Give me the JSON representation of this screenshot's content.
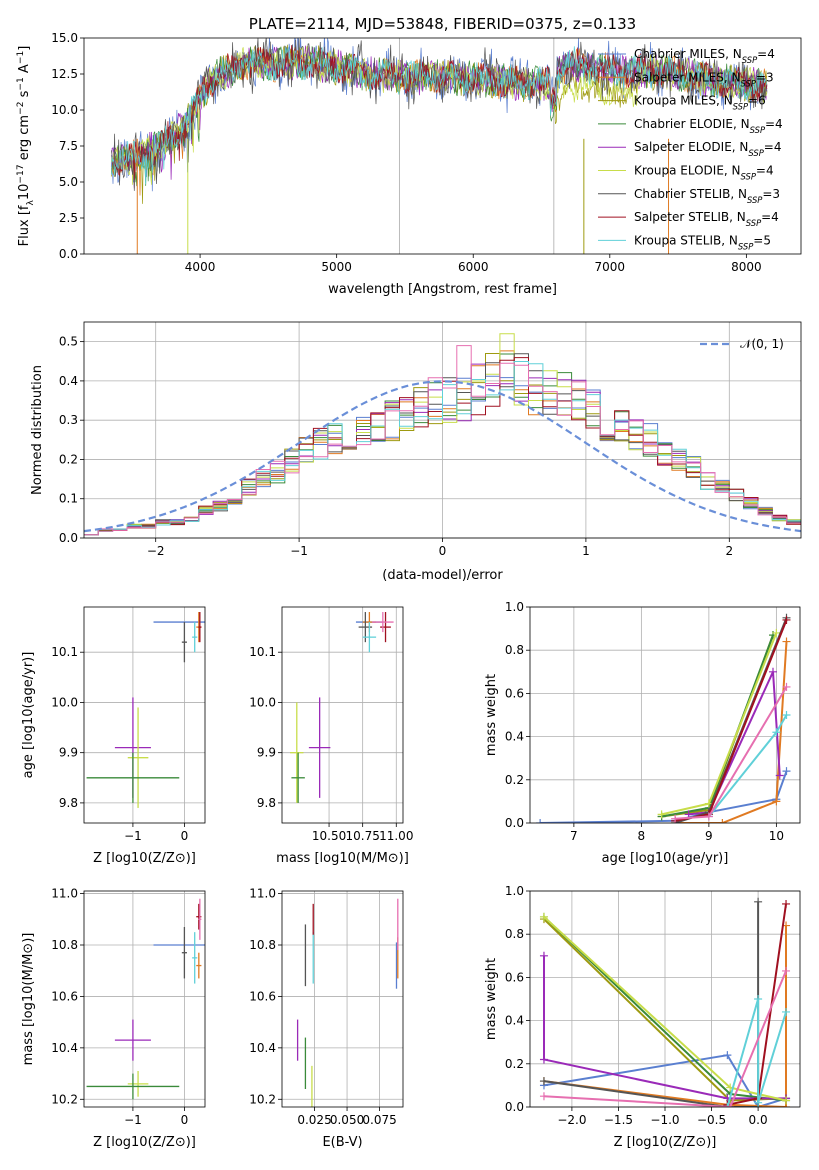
{
  "colors": {
    "Chabrier MILES": "#5a7fd0",
    "Salpeter MILES": "#e07a22",
    "Kroupa MILES": "#9e9a10",
    "Chabrier ELODIE": "#3a8a3a",
    "Salpeter ELODIE": "#9a2ab8",
    "Kroupa ELODIE": "#c8dd4a",
    "Chabrier STELIB": "#555555",
    "Salpeter STELIB": "#a01020",
    "Kroupa STELIB": "#60d0d8",
    "pink": "#e66fb0",
    "normal": "#6a8fd8"
  },
  "chart_data": [
    {
      "id": "spectrum",
      "type": "line",
      "title": "PLATE=2114, MJD=53848, FIBERID=0375, z=0.133",
      "xlabel": "wavelength [Angstrom, rest frame]",
      "ylabel": "Flux [f_λ 10^-17 erg cm^-2 s^-1 A^-1]",
      "xlim": [
        3150,
        8400
      ],
      "ylim": [
        0,
        15
      ],
      "xticks": [
        4000,
        5000,
        6000,
        7000,
        8000
      ],
      "yticks": [
        0.0,
        2.5,
        5.0,
        7.5,
        10.0,
        12.5,
        15.0
      ],
      "grid": false,
      "legend": "top-right",
      "legend_entries": [
        {
          "model": "Chabrier MILES",
          "n_ssp": 4
        },
        {
          "model": "Salpeter MILES",
          "n_ssp": 3
        },
        {
          "model": "Kroupa MILES",
          "n_ssp": 6
        },
        {
          "model": "Chabrier ELODIE",
          "n_ssp": 4
        },
        {
          "model": "Salpeter ELODIE",
          "n_ssp": 4
        },
        {
          "model": "Kroupa ELODIE",
          "n_ssp": 4
        },
        {
          "model": "Chabrier STELIB",
          "n_ssp": 3
        },
        {
          "model": "Salpeter STELIB",
          "n_ssp": 4
        },
        {
          "model": "Kroupa STELIB",
          "n_ssp": 5
        }
      ],
      "continuum": {
        "x": [
          3350,
          3550,
          3700,
          3900,
          4000,
          4100,
          4300,
          4500,
          4800,
          5000,
          5200,
          5500,
          5800,
          6000,
          6200,
          6400,
          6550,
          6700,
          7000,
          7200,
          7500,
          7800,
          8100
        ],
        "y": [
          6.5,
          6.8,
          7.5,
          9.0,
          11.0,
          12.3,
          13.2,
          13.2,
          13.3,
          13.0,
          12.6,
          12.3,
          12.3,
          12.2,
          12.0,
          11.8,
          11.8,
          13.2,
          12.8,
          12.7,
          12.5,
          12.0,
          11.7
        ]
      },
      "vertical_lines": [
        5460,
        6590
      ]
    },
    {
      "id": "residuals",
      "type": "histogram",
      "xlabel": "(data-model)/error",
      "ylabel": "Normed distribution",
      "xlim": [
        -2.5,
        2.5
      ],
      "ylim": [
        0,
        0.55
      ],
      "xticks": [
        -2,
        -1,
        0,
        1,
        2
      ],
      "yticks": [
        0.0,
        0.1,
        0.2,
        0.3,
        0.4,
        0.5
      ],
      "grid": true,
      "legend": "top-right",
      "legend_entries": [
        "𝒩(0, 1)"
      ],
      "bins": [
        -2.5,
        -2.4,
        -2.3,
        -2.2,
        -2.1,
        -2.0,
        -1.9,
        -1.8,
        -1.7,
        -1.6,
        -1.5,
        -1.4,
        -1.3,
        -1.2,
        -1.1,
        -1.0,
        -0.9,
        -0.8,
        -0.7,
        -0.6,
        -0.5,
        -0.4,
        -0.3,
        -0.2,
        -0.1,
        0.0,
        0.1,
        0.2,
        0.3,
        0.4,
        0.5,
        0.6,
        0.7,
        0.8,
        0.9,
        1.0,
        1.1,
        1.2,
        1.3,
        1.4,
        1.5,
        1.6,
        1.7,
        1.8,
        1.9,
        2.0,
        2.1,
        2.2,
        2.3,
        2.4,
        2.5
      ],
      "base": [
        0.01,
        0.02,
        0.02,
        0.03,
        0.03,
        0.04,
        0.04,
        0.05,
        0.07,
        0.08,
        0.1,
        0.13,
        0.15,
        0.17,
        0.2,
        0.22,
        0.24,
        0.25,
        0.27,
        0.28,
        0.29,
        0.3,
        0.32,
        0.33,
        0.35,
        0.35,
        0.36,
        0.38,
        0.4,
        0.41,
        0.4,
        0.38,
        0.37,
        0.36,
        0.35,
        0.33,
        0.3,
        0.28,
        0.27,
        0.25,
        0.22,
        0.2,
        0.18,
        0.15,
        0.13,
        0.11,
        0.09,
        0.07,
        0.05,
        0.04
      ]
    },
    {
      "id": "age-vs-Z",
      "type": "scatter",
      "xlabel": "Z [log10(Z/Z⊙)]",
      "ylabel": "age [log10(age/yr)]",
      "xlim": [
        -1.95,
        0.4
      ],
      "ylim": [
        9.76,
        10.19
      ],
      "xticks": [
        -1,
        0
      ],
      "yticks": [
        9.8,
        9.9,
        10.0,
        10.1
      ],
      "grid": true,
      "points": [
        {
          "model": "Chabrier MILES",
          "x": -0.1,
          "xerr": 0.5,
          "y": 10.16,
          "yerr": 0.0
        },
        {
          "model": "Salpeter MILES",
          "x": 0.28,
          "xerr": 0.05,
          "y": 10.15,
          "yerr": 0.03
        },
        {
          "model": "Chabrier STELIB",
          "x": 0.0,
          "xerr": 0.05,
          "y": 10.12,
          "yerr": 0.04
        },
        {
          "model": "Salpeter STELIB",
          "x": 0.3,
          "xerr": 0.03,
          "y": 10.15,
          "yerr": 0.03
        },
        {
          "model": "Kroupa STELIB",
          "x": 0.2,
          "xerr": 0.05,
          "y": 10.13,
          "yerr": 0.03
        },
        {
          "model": "Salpeter ELODIE",
          "x": -1.0,
          "xerr": 0.35,
          "y": 9.91,
          "yerr": 0.1
        },
        {
          "model": "Kroupa ELODIE",
          "x": -0.9,
          "xerr": 0.2,
          "y": 9.89,
          "yerr": 0.1
        },
        {
          "model": "Chabrier ELODIE",
          "x": -1.0,
          "xerr": 0.9,
          "y": 9.85,
          "yerr": 0.05
        }
      ]
    },
    {
      "id": "age-vs-mass",
      "type": "scatter",
      "xlabel": "mass [log10(M/M⊙)]",
      "ylabel": "",
      "xlim": [
        10.15,
        11.05
      ],
      "ylim": [
        9.76,
        10.19
      ],
      "xticks": [
        10.5,
        10.75,
        11.0
      ],
      "ytick_labels_at": [
        9.8,
        9.9,
        10.0,
        10.1
      ],
      "grid": true,
      "points": [
        {
          "model": "Chabrier MILES",
          "x": 10.8,
          "xerr": 0.1,
          "y": 10.16,
          "yerr": 0.0
        },
        {
          "model": "Salpeter MILES",
          "x": 10.8,
          "xerr": 0.05,
          "y": 10.16,
          "yerr": 0.02
        },
        {
          "model": "Chabrier STELIB",
          "x": 10.77,
          "xerr": 0.05,
          "y": 10.15,
          "yerr": 0.03
        },
        {
          "model": "Salpeter STELIB",
          "x": 10.92,
          "xerr": 0.04,
          "y": 10.15,
          "yerr": 0.03
        },
        {
          "model": "Kroupa STELIB",
          "x": 10.8,
          "xerr": 0.05,
          "y": 10.13,
          "yerr": 0.03
        },
        {
          "model": "pink",
          "x": 10.9,
          "xerr": 0.08,
          "y": 10.16,
          "yerr": 0.02
        },
        {
          "model": "Salpeter ELODIE",
          "x": 10.43,
          "xerr": 0.08,
          "y": 9.91,
          "yerr": 0.1
        },
        {
          "model": "Kroupa ELODIE",
          "x": 10.26,
          "xerr": 0.05,
          "y": 9.9,
          "yerr": 0.1
        },
        {
          "model": "Chabrier ELODIE",
          "x": 10.27,
          "xerr": 0.05,
          "y": 9.85,
          "yerr": 0.05
        }
      ]
    },
    {
      "id": "weight-vs-age",
      "type": "line",
      "xlabel": "age [log10(age/yr)]",
      "ylabel": "mass weight",
      "xlim": [
        6.35,
        10.35
      ],
      "ylim": [
        0,
        1.0
      ],
      "xticks": [
        7,
        8,
        9,
        10
      ],
      "yticks": [
        0.0,
        0.2,
        0.4,
        0.6,
        0.8,
        1.0
      ],
      "grid": true,
      "series": [
        {
          "model": "Chabrier MILES",
          "points": [
            [
              6.5,
              0.0
            ],
            [
              8.5,
              0.01
            ],
            [
              9.0,
              0.05
            ],
            [
              10.0,
              0.11
            ],
            [
              10.15,
              0.24
            ]
          ]
        },
        {
          "model": "Salpeter MILES",
          "points": [
            [
              8.5,
              0.0
            ],
            [
              9.2,
              0.0
            ],
            [
              10.0,
              0.1
            ],
            [
              10.15,
              0.84
            ]
          ]
        },
        {
          "model": "Kroupa MILES",
          "points": [
            [
              8.3,
              0.03
            ],
            [
              9.0,
              0.06
            ],
            [
              9.95,
              0.87
            ]
          ]
        },
        {
          "model": "Chabrier ELODIE",
          "points": [
            [
              8.3,
              0.03
            ],
            [
              9.0,
              0.07
            ],
            [
              9.95,
              0.87
            ]
          ]
        },
        {
          "model": "Salpeter ELODIE",
          "points": [
            [
              8.7,
              0.04
            ],
            [
              9.0,
              0.05
            ],
            [
              9.95,
              0.7
            ],
            [
              10.05,
              0.22
            ]
          ]
        },
        {
          "model": "Kroupa ELODIE",
          "points": [
            [
              8.3,
              0.04
            ],
            [
              9.0,
              0.09
            ],
            [
              10.0,
              0.88
            ]
          ]
        },
        {
          "model": "Chabrier STELIB",
          "points": [
            [
              8.5,
              0.0
            ],
            [
              9.0,
              0.05
            ],
            [
              10.15,
              0.95
            ]
          ]
        },
        {
          "model": "Salpeter STELIB",
          "points": [
            [
              8.5,
              0.01
            ],
            [
              9.0,
              0.04
            ],
            [
              10.15,
              0.94
            ]
          ]
        },
        {
          "model": "Kroupa STELIB",
          "points": [
            [
              9.0,
              0.03
            ],
            [
              10.0,
              0.42
            ],
            [
              10.15,
              0.5
            ]
          ]
        },
        {
          "model": "pink",
          "points": [
            [
              8.5,
              0.02
            ],
            [
              9.0,
              0.03
            ],
            [
              10.15,
              0.63
            ]
          ]
        }
      ]
    },
    {
      "id": "mass-vs-Z",
      "type": "scatter",
      "xlabel": "Z [log10(Z/Z⊙)]",
      "ylabel": "mass [log10(M/M⊙)]",
      "xlim": [
        -1.95,
        0.4
      ],
      "ylim": [
        10.17,
        11.01
      ],
      "xticks": [
        -1,
        0
      ],
      "yticks": [
        10.2,
        10.4,
        10.6,
        10.8,
        11.0
      ],
      "grid": true,
      "points": [
        {
          "model": "Chabrier MILES",
          "x": -0.1,
          "xerr": 0.5,
          "y": 10.8,
          "yerr": 0.0
        },
        {
          "model": "Chabrier STELIB",
          "x": 0.0,
          "xerr": 0.05,
          "y": 10.77,
          "yerr": 0.1
        },
        {
          "model": "Salpeter MILES",
          "x": 0.28,
          "xerr": 0.05,
          "y": 10.72,
          "yerr": 0.05
        },
        {
          "model": "Kroupa STELIB",
          "x": 0.2,
          "xerr": 0.05,
          "y": 10.75,
          "yerr": 0.1
        },
        {
          "model": "Salpeter STELIB",
          "x": 0.28,
          "xerr": 0.05,
          "y": 10.91,
          "yerr": 0.05
        },
        {
          "model": "pink",
          "x": 0.3,
          "xerr": 0.03,
          "y": 10.9,
          "yerr": 0.08
        },
        {
          "model": "Salpeter ELODIE",
          "x": -1.0,
          "xerr": 0.35,
          "y": 10.43,
          "yerr": 0.08
        },
        {
          "model": "Kroupa ELODIE",
          "x": -0.9,
          "xerr": 0.2,
          "y": 10.26,
          "yerr": 0.05
        },
        {
          "model": "Chabrier ELODIE",
          "x": -1.0,
          "xerr": 0.9,
          "y": 10.25,
          "yerr": 0.05
        }
      ]
    },
    {
      "id": "mass-vs-ebv",
      "type": "scatter",
      "xlabel": "E(B-V)",
      "ylabel": "",
      "xlim": [
        0.0,
        0.093
      ],
      "ylim": [
        10.17,
        11.01
      ],
      "xticks": [
        0.025,
        0.05,
        0.075
      ],
      "xtick_labels": [
        "0.025",
        "0.050",
        "0.075"
      ],
      "ytick_labels_at": [
        10.2,
        10.4,
        10.6,
        10.8,
        11.0
      ],
      "grid": true,
      "points": [
        {
          "model": "Salpeter ELODIE",
          "x": 0.012,
          "xerr": 0.0,
          "y": 10.43,
          "yerr": 0.08
        },
        {
          "model": "Chabrier ELODIE",
          "x": 0.018,
          "xerr": 0.0,
          "y": 10.34,
          "yerr": 0.1
        },
        {
          "model": "Kroupa ELODIE",
          "x": 0.023,
          "xerr": 0.0,
          "y": 10.25,
          "yerr": 0.08
        },
        {
          "model": "Chabrier STELIB",
          "x": 0.018,
          "xerr": 0.0,
          "y": 10.76,
          "yerr": 0.12
        },
        {
          "model": "Kroupa STELIB",
          "x": 0.024,
          "xerr": 0.0,
          "y": 10.75,
          "yerr": 0.1
        },
        {
          "model": "Salpeter STELIB",
          "x": 0.024,
          "xerr": 0.0,
          "y": 10.9,
          "yerr": 0.06
        },
        {
          "model": "Chabrier MILES",
          "x": 0.088,
          "xerr": 0.0,
          "y": 10.72,
          "yerr": 0.09
        },
        {
          "model": "Salpeter MILES",
          "x": 0.089,
          "xerr": 0.0,
          "y": 10.75,
          "yerr": 0.08
        },
        {
          "model": "pink",
          "x": 0.089,
          "xerr": 0.0,
          "y": 10.88,
          "yerr": 0.1
        }
      ]
    },
    {
      "id": "weight-vs-Z",
      "type": "line",
      "xlabel": "Z [log10(Z/Z⊙)]",
      "ylabel": "mass weight",
      "xlim": [
        -2.45,
        0.45
      ],
      "ylim": [
        0,
        1.0
      ],
      "xticks": [
        -2.0,
        -1.5,
        -1.0,
        -0.5,
        0.0
      ],
      "xtick_labels": [
        "−2.0",
        "−1.5",
        "−1.0",
        "−0.5",
        "0.0"
      ],
      "yticks": [
        0.0,
        0.2,
        0.4,
        0.6,
        0.8,
        1.0
      ],
      "grid": true,
      "series": [
        {
          "model": "Chabrier MILES",
          "points": [
            [
              -2.3,
              0.1
            ],
            [
              -0.33,
              0.24
            ],
            [
              0.0,
              0.0
            ],
            [
              0.3,
              0.04
            ]
          ]
        },
        {
          "model": "Salpeter MILES",
          "points": [
            [
              -2.3,
              0.12
            ],
            [
              -0.33,
              0.01
            ],
            [
              0.3,
              0.0
            ],
            [
              0.3,
              0.84
            ]
          ]
        },
        {
          "model": "Kroupa MILES",
          "points": [
            [
              -2.3,
              0.87
            ],
            [
              -0.3,
              0.03
            ],
            [
              0.3,
              0.04
            ]
          ]
        },
        {
          "model": "Chabrier ELODIE",
          "points": [
            [
              -2.3,
              0.88
            ],
            [
              -0.3,
              0.06
            ],
            [
              0.3,
              0.03
            ]
          ]
        },
        {
          "model": "Salpeter ELODIE",
          "points": [
            [
              -2.3,
              0.7
            ],
            [
              -2.3,
              0.22
            ],
            [
              -0.33,
              0.04
            ],
            [
              0.3,
              0.04
            ]
          ]
        },
        {
          "model": "Kroupa ELODIE",
          "points": [
            [
              -2.3,
              0.88
            ],
            [
              -0.3,
              0.09
            ],
            [
              0.3,
              0.03
            ]
          ]
        },
        {
          "model": "Chabrier STELIB",
          "points": [
            [
              -2.3,
              0.12
            ],
            [
              -0.33,
              0.0
            ],
            [
              0.0,
              0.0
            ],
            [
              0.0,
              0.95
            ]
          ]
        },
        {
          "model": "Salpeter STELIB",
          "points": [
            [
              -0.33,
              0.01
            ],
            [
              0.0,
              0.04
            ],
            [
              0.3,
              0.94
            ]
          ]
        },
        {
          "model": "Kroupa STELIB",
          "points": [
            [
              -0.33,
              0.0
            ],
            [
              0.0,
              0.5
            ],
            [
              0.0,
              0.02
            ],
            [
              0.3,
              0.44
            ]
          ]
        },
        {
          "model": "pink",
          "points": [
            [
              -2.3,
              0.05
            ],
            [
              -0.3,
              0.0
            ],
            [
              0.3,
              0.63
            ]
          ]
        }
      ]
    }
  ]
}
